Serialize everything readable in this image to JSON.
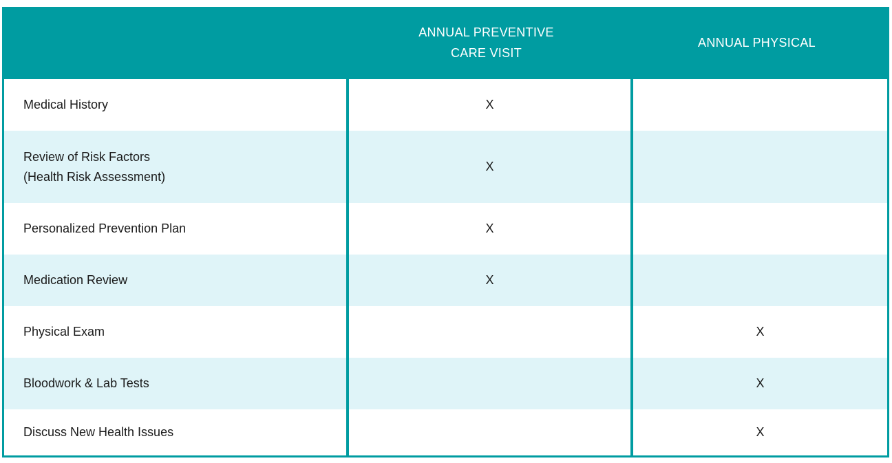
{
  "colors": {
    "header_teal": "#009CA1",
    "row_alt_blue": "#DFF4F8",
    "header_text": "#FFFFFF",
    "body_text": "#1A1A1A"
  },
  "header": {
    "service_col": "",
    "col_preventive": "ANNUAL PREVENTIVE\nCARE VISIT",
    "col_physical": "ANNUAL PHYSICAL"
  },
  "rows": [
    {
      "label": "Medical History",
      "preventive": "X",
      "physical": ""
    },
    {
      "label": "Review of Risk Factors\n(Health Risk Assessment)",
      "preventive": "X",
      "physical": ""
    },
    {
      "label": "Personalized Prevention Plan",
      "preventive": "X",
      "physical": ""
    },
    {
      "label": "Medication Review",
      "preventive": "X",
      "physical": ""
    },
    {
      "label": "Physical Exam",
      "preventive": "",
      "physical": "X"
    },
    {
      "label": "Bloodwork & Lab Tests",
      "preventive": "",
      "physical": "X"
    },
    {
      "label": "Discuss New Health Issues",
      "preventive": "",
      "physical": "X"
    }
  ]
}
